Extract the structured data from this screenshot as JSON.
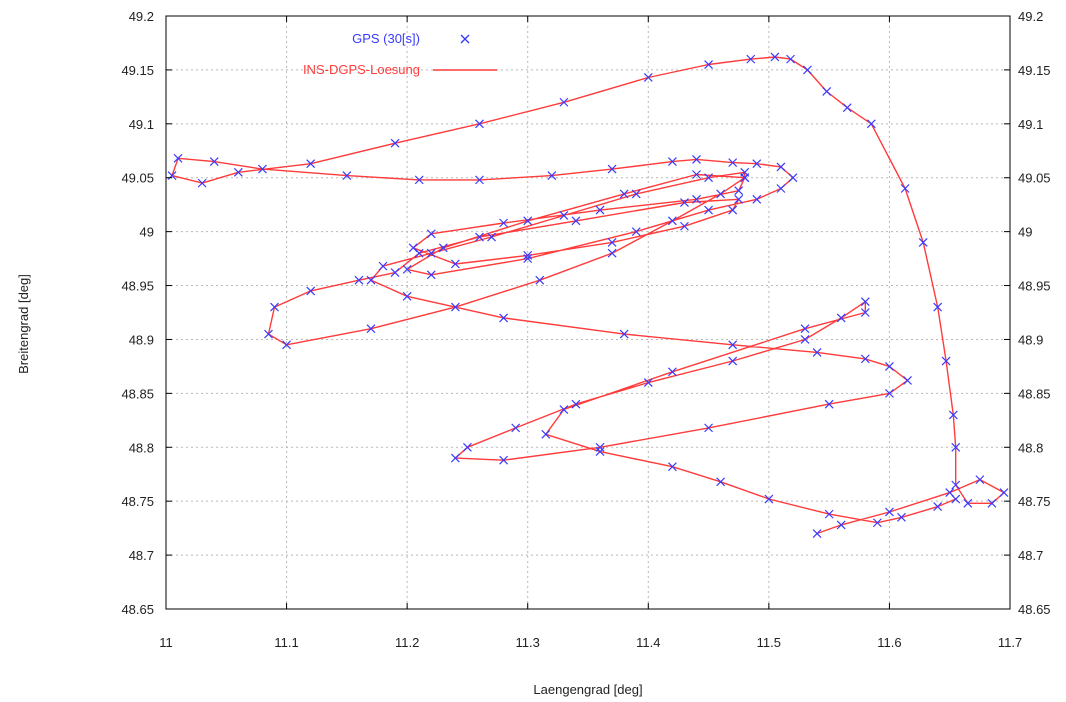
{
  "chart_data": {
    "type": "line",
    "xlabel": "Laengengrad [deg]",
    "ylabel": "Breitengrad [deg]",
    "xlim": [
      11,
      11.7
    ],
    "ylim": [
      48.65,
      49.2
    ],
    "x_ticks": [
      "11",
      "11.1",
      "11.2",
      "11.3",
      "11.4",
      "11.5",
      "11.6",
      "11.7"
    ],
    "y_ticks": [
      "48.65",
      "48.7",
      "48.75",
      "48.8",
      "48.85",
      "48.9",
      "48.95",
      "49",
      "49.05",
      "49.1",
      "49.15",
      "49.2"
    ],
    "grid": true,
    "legend_position": "top-left",
    "colors": {
      "gps": "#3a3aff",
      "ins": "#ff3b3b"
    },
    "series": [
      {
        "name": "INS-DGPS-Loesung",
        "style": "line",
        "x": [
          11.54,
          11.56,
          11.6,
          11.65,
          11.675,
          11.695,
          11.685,
          11.665,
          11.655,
          11.655,
          11.653,
          11.647,
          11.64,
          11.628,
          11.613,
          11.585,
          11.565,
          11.548,
          11.532,
          11.518,
          11.505,
          11.485,
          11.45,
          11.4,
          11.33,
          11.26,
          11.19,
          11.12,
          11.06,
          11.03,
          11.005,
          11.01,
          11.04,
          11.08,
          11.15,
          11.21,
          11.26,
          11.32,
          11.37,
          11.42,
          11.44,
          11.47,
          11.49,
          11.51,
          11.52,
          11.51,
          11.49,
          11.45,
          11.39,
          11.3,
          11.22,
          11.2,
          11.23,
          11.3,
          11.38,
          11.44,
          11.48,
          11.475,
          11.44,
          11.36,
          11.28,
          11.22,
          11.205,
          11.24,
          11.3,
          11.37,
          11.43,
          11.47,
          11.475,
          11.43,
          11.34,
          11.26,
          11.21,
          11.19,
          11.16,
          11.12,
          11.09,
          11.085,
          11.1,
          11.17,
          11.24,
          11.31,
          11.37,
          11.42,
          11.46,
          11.48,
          11.48,
          11.45,
          11.39,
          11.33,
          11.27,
          11.22,
          11.18,
          11.17,
          11.2,
          11.28,
          11.38,
          11.47,
          11.54,
          11.58,
          11.6,
          11.615,
          11.6,
          11.55,
          11.45,
          11.36,
          11.28,
          11.24,
          11.25,
          11.29,
          11.34,
          11.4,
          11.47,
          11.53,
          11.56,
          11.58,
          11.58,
          11.53,
          11.42,
          11.33,
          11.315,
          11.36,
          11.42,
          11.46,
          11.5,
          11.55,
          11.59,
          11.61,
          11.64,
          11.655
        ],
        "y": [
          48.72,
          48.728,
          48.74,
          48.758,
          48.77,
          48.758,
          48.748,
          48.748,
          48.765,
          48.8,
          48.83,
          48.88,
          48.93,
          48.99,
          49.04,
          49.1,
          49.115,
          49.13,
          49.15,
          49.16,
          49.162,
          49.16,
          49.155,
          49.143,
          49.12,
          49.1,
          49.082,
          49.063,
          49.055,
          49.045,
          49.052,
          49.068,
          49.065,
          49.058,
          49.052,
          49.048,
          49.048,
          49.052,
          49.058,
          49.065,
          49.067,
          49.064,
          49.063,
          49.06,
          49.05,
          49.04,
          49.03,
          49.02,
          49.0,
          48.975,
          48.96,
          48.965,
          48.985,
          49.01,
          49.035,
          49.053,
          49.05,
          49.038,
          49.03,
          49.02,
          49.008,
          48.998,
          48.985,
          48.97,
          48.978,
          48.99,
          49.005,
          49.02,
          49.03,
          49.027,
          49.01,
          48.995,
          48.98,
          48.962,
          48.955,
          48.945,
          48.93,
          48.905,
          48.895,
          48.91,
          48.93,
          48.955,
          48.98,
          49.01,
          49.035,
          49.05,
          49.055,
          49.05,
          49.035,
          49.015,
          48.995,
          48.98,
          48.968,
          48.955,
          48.94,
          48.92,
          48.905,
          48.895,
          48.888,
          48.882,
          48.875,
          48.862,
          48.85,
          48.84,
          48.818,
          48.8,
          48.788,
          48.79,
          48.8,
          48.818,
          48.84,
          48.86,
          48.88,
          48.9,
          48.92,
          48.935,
          48.925,
          48.91,
          48.87,
          48.835,
          48.812,
          48.796,
          48.782,
          48.768,
          48.752,
          48.738,
          48.73,
          48.735,
          48.745,
          48.752
        ]
      },
      {
        "name": "GPS (30[s])",
        "style": "points",
        "x": [
          11.54,
          11.56,
          11.6,
          11.65,
          11.675,
          11.695,
          11.685,
          11.665,
          11.655,
          11.655,
          11.653,
          11.647,
          11.64,
          11.628,
          11.613,
          11.585,
          11.565,
          11.548,
          11.532,
          11.518,
          11.505,
          11.485,
          11.45,
          11.4,
          11.33,
          11.26,
          11.19,
          11.12,
          11.06,
          11.03,
          11.005,
          11.01,
          11.04,
          11.08,
          11.15,
          11.21,
          11.26,
          11.32,
          11.37,
          11.42,
          11.44,
          11.47,
          11.49,
          11.51,
          11.52,
          11.51,
          11.49,
          11.45,
          11.39,
          11.3,
          11.22,
          11.2,
          11.23,
          11.3,
          11.38,
          11.44,
          11.48,
          11.475,
          11.44,
          11.36,
          11.28,
          11.22,
          11.205,
          11.24,
          11.3,
          11.37,
          11.43,
          11.47,
          11.475,
          11.43,
          11.34,
          11.26,
          11.21,
          11.19,
          11.16,
          11.12,
          11.09,
          11.085,
          11.1,
          11.17,
          11.24,
          11.31,
          11.37,
          11.42,
          11.46,
          11.48,
          11.48,
          11.45,
          11.39,
          11.33,
          11.27,
          11.22,
          11.18,
          11.17,
          11.2,
          11.28,
          11.38,
          11.47,
          11.54,
          11.58,
          11.6,
          11.615,
          11.6,
          11.55,
          11.45,
          11.36,
          11.28,
          11.24,
          11.25,
          11.29,
          11.34,
          11.4,
          11.47,
          11.53,
          11.56,
          11.58,
          11.58,
          11.53,
          11.42,
          11.33,
          11.315,
          11.36,
          11.42,
          11.46,
          11.5,
          11.55,
          11.59,
          11.61,
          11.64,
          11.655
        ],
        "y": [
          48.72,
          48.728,
          48.74,
          48.758,
          48.77,
          48.758,
          48.748,
          48.748,
          48.765,
          48.8,
          48.83,
          48.88,
          48.93,
          48.99,
          49.04,
          49.1,
          49.115,
          49.13,
          49.15,
          49.16,
          49.162,
          49.16,
          49.155,
          49.143,
          49.12,
          49.1,
          49.082,
          49.063,
          49.055,
          49.045,
          49.052,
          49.068,
          49.065,
          49.058,
          49.052,
          49.048,
          49.048,
          49.052,
          49.058,
          49.065,
          49.067,
          49.064,
          49.063,
          49.06,
          49.05,
          49.04,
          49.03,
          49.02,
          49.0,
          48.975,
          48.96,
          48.965,
          48.985,
          49.01,
          49.035,
          49.053,
          49.05,
          49.038,
          49.03,
          49.02,
          49.008,
          48.998,
          48.985,
          48.97,
          48.978,
          48.99,
          49.005,
          49.02,
          49.03,
          49.027,
          49.01,
          48.995,
          48.98,
          48.962,
          48.955,
          48.945,
          48.93,
          48.905,
          48.895,
          48.91,
          48.93,
          48.955,
          48.98,
          49.01,
          49.035,
          49.05,
          49.055,
          49.05,
          49.035,
          49.015,
          48.995,
          48.98,
          48.968,
          48.955,
          48.94,
          48.92,
          48.905,
          48.895,
          48.888,
          48.882,
          48.875,
          48.862,
          48.85,
          48.84,
          48.818,
          48.8,
          48.788,
          48.79,
          48.8,
          48.818,
          48.84,
          48.86,
          48.88,
          48.9,
          48.92,
          48.935,
          48.925,
          48.91,
          48.87,
          48.835,
          48.812,
          48.796,
          48.782,
          48.768,
          48.752,
          48.738,
          48.73,
          48.735,
          48.745,
          48.752
        ]
      }
    ]
  }
}
